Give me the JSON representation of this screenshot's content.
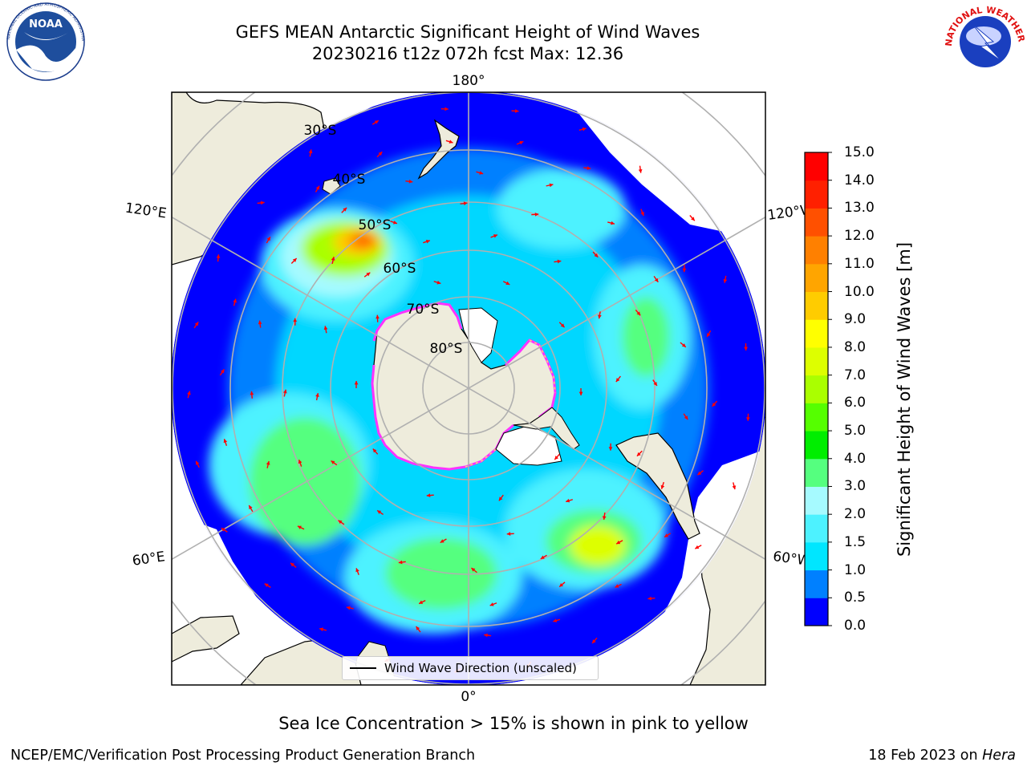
{
  "title": {
    "line1": "GEFS MEAN Antarctic Significant Height of Wind Waves",
    "line2": "20230216 t12z 072h fcst   Max: 12.36"
  },
  "logos": {
    "left": "NOAA",
    "left_ring": "NATIONAL OCEANIC AND ATMOSPHERIC ADMINISTRATION · U.S. DEPARTMENT OF COMMERCE",
    "right_ring": "NATIONAL WEATHER SERVICE"
  },
  "map": {
    "projection": "south-polar-stereographic",
    "longitude_labels": {
      "top": "180°",
      "bottom": "0°",
      "upper_left": "120°E",
      "upper_right": "120°W",
      "lower_left": "60°E",
      "lower_right": "60°W"
    },
    "latitude_labels": [
      "30°S",
      "40°S",
      "50°S",
      "60°S",
      "70°S",
      "80°S"
    ],
    "colors": {
      "land": "#eeecdc",
      "ocean_no_data": "#ffffff",
      "grid": "#b0b0b0",
      "arrow": "#ff0000",
      "coast": "#000000",
      "ice_low": "#ff33ff",
      "ice_high": "#ffff55"
    }
  },
  "legend": {
    "label": "Wind Wave Direction (unscaled)"
  },
  "colorbar": {
    "title": "Significant Height of Wind Waves [m]",
    "ticks": [
      "15.0",
      "14.0",
      "13.0",
      "12.0",
      "11.0",
      "10.0",
      "9.0",
      "8.0",
      "7.0",
      "6.0",
      "5.0",
      "4.0",
      "3.0",
      "2.0",
      "1.5",
      "1.0",
      "0.5",
      "0.0"
    ],
    "colors_bottom_to_top": [
      "#0000ff",
      "#0080ff",
      "#00e6ff",
      "#4df2ff",
      "#a6faff",
      "#55ff7f",
      "#00ee00",
      "#55ff00",
      "#aaff00",
      "#ddff00",
      "#ffff00",
      "#ffcc00",
      "#ffa500",
      "#ff8000",
      "#ff5000",
      "#ff2000",
      "#ff0000"
    ]
  },
  "note": "Sea Ice Concentration > 15% is shown in pink to yellow",
  "footer": {
    "left": "NCEP/EMC/Verification Post Processing Product Generation Branch",
    "right_prefix": "18 Feb 2023 on ",
    "right_italic": "Hera"
  }
}
